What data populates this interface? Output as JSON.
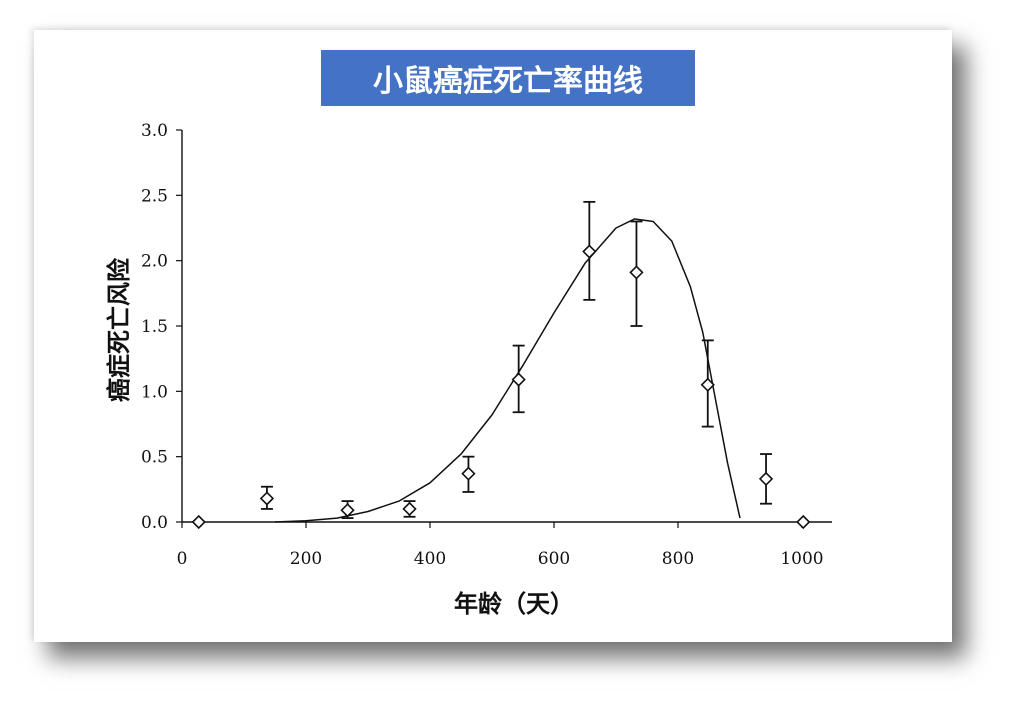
{
  "title": "小鼠癌症死亡率曲线",
  "colors": {
    "title_bg": "#4472c4",
    "ink": "#111111"
  },
  "chart_data": {
    "type": "scatter",
    "title": "小鼠癌症死亡率曲线",
    "xlabel": "年龄（天）",
    "ylabel": "癌症死亡风险",
    "xlim": [
      0,
      1050
    ],
    "ylim": [
      0,
      3.0
    ],
    "x_ticks": [
      "0",
      "200",
      "400",
      "600",
      "800",
      "1000"
    ],
    "y_ticks": [
      "0.0",
      "0.5",
      "1.0",
      "1.5",
      "2.0",
      "2.5",
      "3.0"
    ],
    "grid": false,
    "points": [
      {
        "x": 27,
        "y": 0.0
      },
      {
        "x": 137,
        "y": 0.18,
        "err_low": 0.1,
        "err_high": 0.27
      },
      {
        "x": 267,
        "y": 0.09,
        "err_low": 0.03,
        "err_high": 0.16
      },
      {
        "x": 367,
        "y": 0.1,
        "err_low": 0.04,
        "err_high": 0.16
      },
      {
        "x": 462,
        "y": 0.37,
        "err_low": 0.23,
        "err_high": 0.5
      },
      {
        "x": 543,
        "y": 1.09,
        "err_low": 0.84,
        "err_high": 1.35
      },
      {
        "x": 657,
        "y": 2.07,
        "err_low": 1.7,
        "err_high": 2.45
      },
      {
        "x": 733,
        "y": 1.91,
        "err_low": 1.5,
        "err_high": 2.3
      },
      {
        "x": 848,
        "y": 1.05,
        "err_low": 0.73,
        "err_high": 1.39
      },
      {
        "x": 942,
        "y": 0.33,
        "err_low": 0.14,
        "err_high": 0.52
      },
      {
        "x": 1002,
        "y": 0.0
      }
    ],
    "fit_curve": {
      "x": [
        150,
        200,
        250,
        300,
        350,
        400,
        450,
        500,
        550,
        600,
        650,
        700,
        730,
        760,
        790,
        820,
        840,
        860,
        880,
        900
      ],
      "y": [
        0.0,
        0.01,
        0.03,
        0.08,
        0.16,
        0.3,
        0.52,
        0.82,
        1.2,
        1.6,
        1.98,
        2.25,
        2.32,
        2.3,
        2.15,
        1.8,
        1.45,
        0.95,
        0.45,
        0.03
      ]
    }
  }
}
